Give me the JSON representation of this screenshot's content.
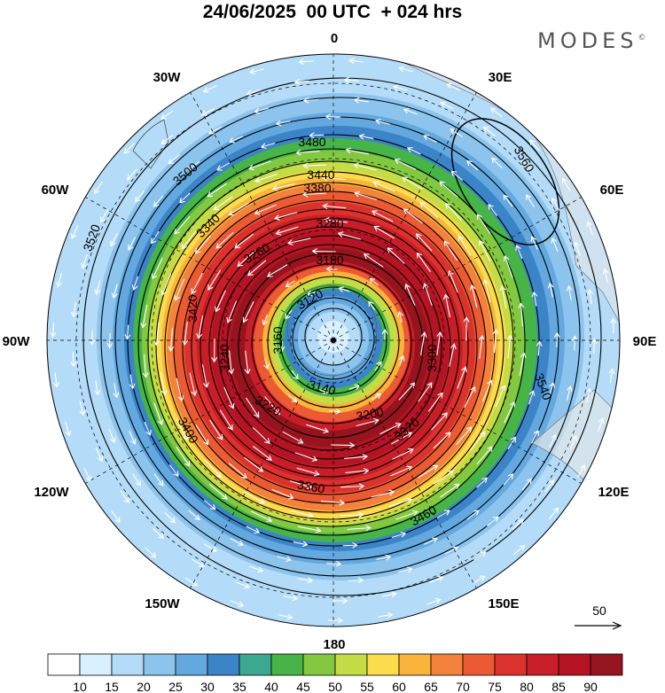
{
  "header": {
    "title": "24/06/2025  00 UTC  + 024 hrs",
    "brand": "MODES",
    "brand_mark": "©"
  },
  "map": {
    "projection": "south-polar-stereographic",
    "longitude_labels": [
      {
        "text": "0",
        "lon": 0
      },
      {
        "text": "30E",
        "lon": 30
      },
      {
        "text": "60E",
        "lon": 60
      },
      {
        "text": "90E",
        "lon": 90
      },
      {
        "text": "120E",
        "lon": 120
      },
      {
        "text": "150E",
        "lon": 150
      },
      {
        "text": "180",
        "lon": 180
      },
      {
        "text": "150W",
        "lon": -150
      },
      {
        "text": "120W",
        "lon": -120
      },
      {
        "text": "90W",
        "lon": -90
      },
      {
        "text": "60W",
        "lon": -60
      },
      {
        "text": "30W",
        "lon": -30
      }
    ],
    "height_contours_gpm": [
      "3120",
      "3140",
      "3160",
      "3180",
      "3200",
      "3220",
      "3240",
      "3260",
      "3280",
      "3300",
      "3320",
      "3340",
      "3360",
      "3380",
      "3400",
      "3420",
      "3440",
      "3460",
      "3480",
      "3500",
      "3520",
      "3540",
      "3560"
    ],
    "wind_reference_vector": {
      "value": "50"
    }
  },
  "colorbar": {
    "labels": [
      "10",
      "15",
      "20",
      "25",
      "30",
      "35",
      "40",
      "45",
      "50",
      "55",
      "60",
      "65",
      "70",
      "75",
      "80",
      "85",
      "90"
    ],
    "colors": [
      "#ffffff",
      "#d8f0ff",
      "#b4dcf8",
      "#8cc4ee",
      "#64a8e0",
      "#3c84c8",
      "#3ca890",
      "#46b446",
      "#82c840",
      "#c4dc46",
      "#fadc4c",
      "#fab43c",
      "#f5823c",
      "#eb5a32",
      "#dc322d",
      "#c81e28",
      "#b41423",
      "#96141e"
    ]
  },
  "colors": {
    "land": "#e8e8e8",
    "contour": "#000000",
    "arrow": "#ffffff"
  }
}
